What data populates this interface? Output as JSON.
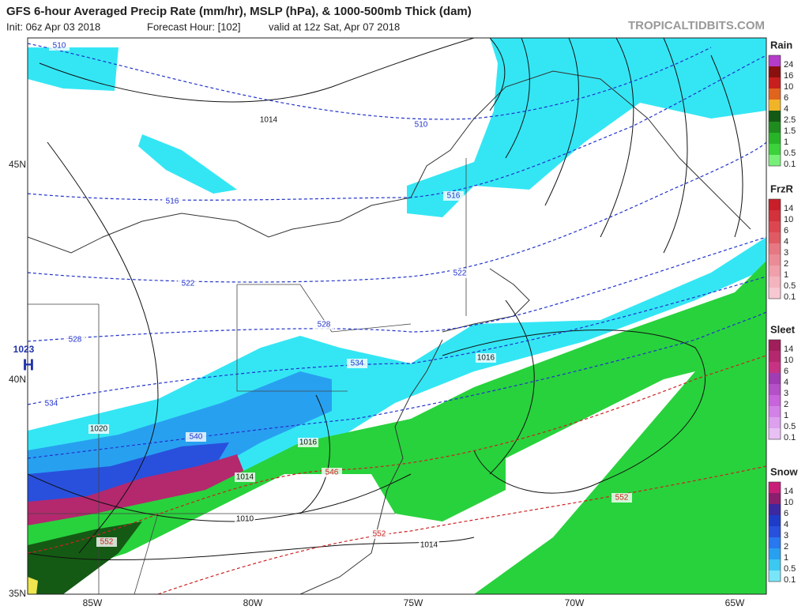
{
  "header": {
    "title": "GFS 6-hour Averaged Precip Rate (mm/hr), MSLP (hPa), & 1000-500mb Thick (dam)",
    "init": "Init: 06z Apr 03 2018",
    "forecast_hour": "Forecast Hour: [102]",
    "valid": "valid at 12z Sat, Apr 07 2018",
    "site": "TROPICALTIDBITS.COM"
  },
  "map": {
    "lat_labels": [
      "45N",
      "40N",
      "35N"
    ],
    "lon_labels": [
      "85W",
      "80W",
      "75W",
      "70W",
      "65W"
    ],
    "pressure_center": {
      "value": "1023",
      "symbol": "H"
    },
    "contour_labels": [
      {
        "text": "510",
        "color": "#2233cc"
      },
      {
        "text": "1014",
        "color": "#111"
      },
      {
        "text": "510",
        "color": "#2233cc"
      },
      {
        "text": "516",
        "color": "#2233cc"
      },
      {
        "text": "516",
        "color": "#2233cc"
      },
      {
        "text": "522",
        "color": "#2233cc"
      },
      {
        "text": "522",
        "color": "#2233cc"
      },
      {
        "text": "528",
        "color": "#2233cc"
      },
      {
        "text": "528",
        "color": "#2233cc"
      },
      {
        "text": "534",
        "color": "#2233cc"
      },
      {
        "text": "534",
        "color": "#2233cc"
      },
      {
        "text": "1016",
        "color": "#111"
      },
      {
        "text": "1020",
        "color": "#111"
      },
      {
        "text": "540",
        "color": "#2233cc"
      },
      {
        "text": "1016",
        "color": "#111"
      },
      {
        "text": "546",
        "color": "#cc2222"
      },
      {
        "text": "1014",
        "color": "#111"
      },
      {
        "text": "552",
        "color": "#cc2222"
      },
      {
        "text": "1010",
        "color": "#111"
      },
      {
        "text": "552",
        "color": "#cc2222"
      },
      {
        "text": "552",
        "color": "#cc2222"
      },
      {
        "text": "1014",
        "color": "#111"
      }
    ]
  },
  "legends": [
    {
      "title": "Rain",
      "labels": [
        "24",
        "16",
        "10",
        "6",
        "4",
        "2.5",
        "1.5",
        "1",
        "0.5",
        "0.1"
      ],
      "colors": [
        "#b43cc8",
        "#8a1010",
        "#c81e1e",
        "#e0641e",
        "#f0b428",
        "#145a14",
        "#1e8c1e",
        "#28b428",
        "#3cd23c",
        "#78f078"
      ]
    },
    {
      "title": "FrzR",
      "labels": [
        "14",
        "10",
        "6",
        "4",
        "3",
        "2",
        "1",
        "0.5",
        "0.1"
      ],
      "colors": [
        "#c81e2a",
        "#d2323c",
        "#dc4650",
        "#e05a64",
        "#e67882",
        "#ea8c96",
        "#f0a0aa",
        "#f4b4be",
        "#f8c8d2"
      ]
    },
    {
      "title": "Sleet",
      "labels": [
        "14",
        "10",
        "6",
        "4",
        "3",
        "2",
        "1",
        "0.5",
        "0.1"
      ],
      "colors": [
        "#a01e5a",
        "#b4286e",
        "#c83282",
        "#a03cb4",
        "#b450c8",
        "#c864dc",
        "#d282e6",
        "#dca0ee",
        "#e8c0f4"
      ]
    },
    {
      "title": "Snow",
      "labels": [
        "14",
        "10",
        "6",
        "4",
        "3",
        "2",
        "1",
        "0.5",
        "0.1"
      ],
      "colors": [
        "#c81e78",
        "#8c1e6e",
        "#3c28a0",
        "#1e3cc8",
        "#2850dc",
        "#2878f0",
        "#28a0f0",
        "#3cc8f0",
        "#78e6f8"
      ]
    }
  ]
}
